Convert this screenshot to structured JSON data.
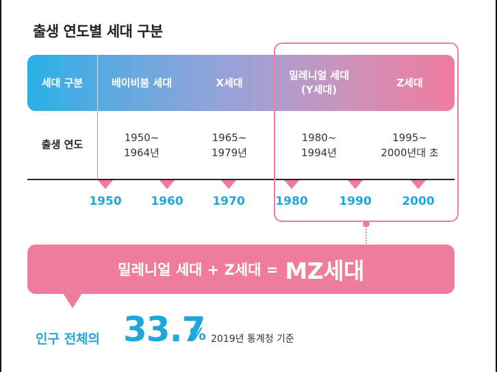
{
  "title": "출생 연도별 세대 구분",
  "header": {
    "label": "세대 구분",
    "generations": [
      {
        "name": "베이비붐 세대"
      },
      {
        "name": "X세대"
      },
      {
        "name": "밀레니얼 세대\n(Y세대)"
      },
      {
        "name": "Z세대"
      }
    ]
  },
  "birth_row": {
    "label": "출생 연도",
    "ranges": [
      "1950~\n1964년",
      "1965~\n1979년",
      "1980~\n1994년",
      "1995~\n2000년대 초"
    ]
  },
  "timeline": {
    "years": [
      "1950",
      "1960",
      "1970",
      "1980",
      "1990",
      "2000"
    ]
  },
  "mz": {
    "equation": "밀레니얼 세대 + Z세대 =",
    "result": "MZ세대"
  },
  "stat": {
    "prefix": "인구 전체의",
    "value": "33.7",
    "unit": "%",
    "source": "2019년 통계청 기준"
  },
  "colors": {
    "pink": "#f07c9d",
    "blue": "#1ea6df",
    "gradient_start": "#2ab0e7",
    "gradient_end": "#f07c9d"
  }
}
